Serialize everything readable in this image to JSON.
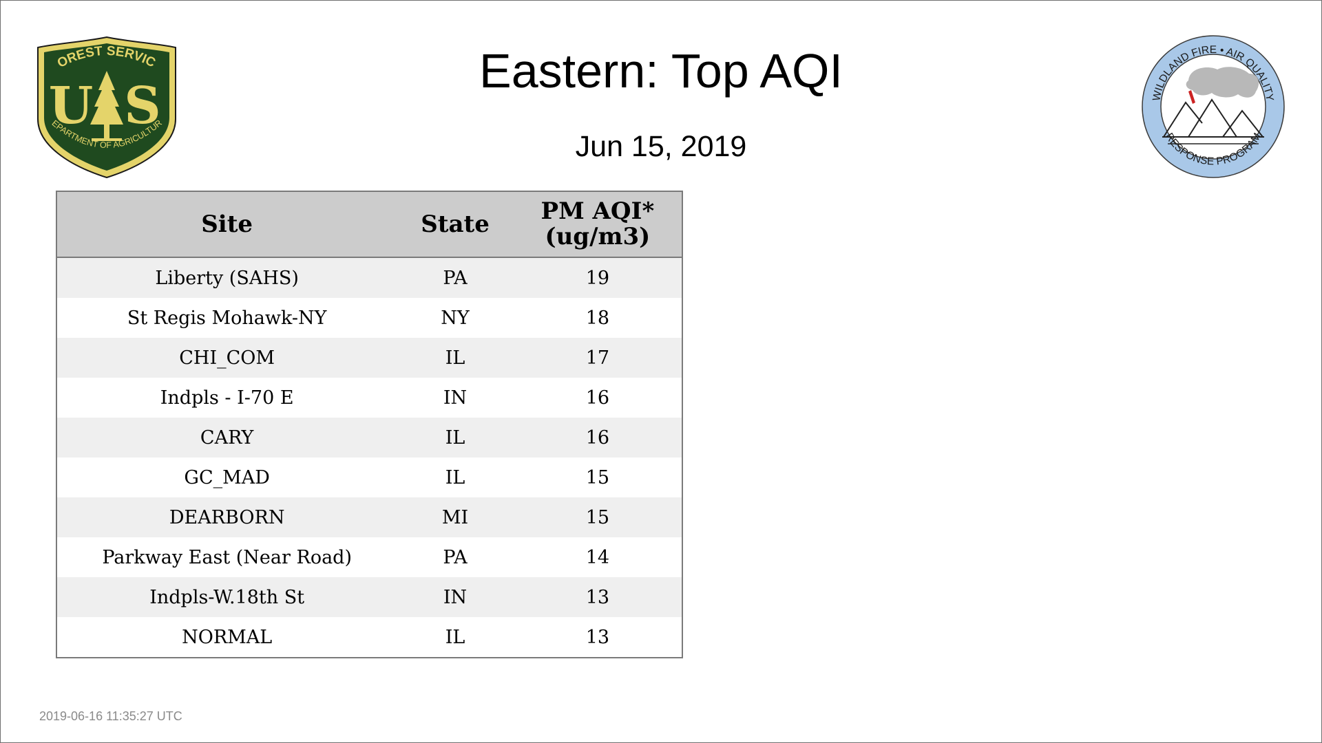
{
  "slide": {
    "title": "Eastern: Top AQI",
    "date": "Jun 15, 2019",
    "timestamp": "2019-06-16 11:35:27 UTC"
  },
  "logos": {
    "left": {
      "icon": "usfs-shield-icon",
      "text_top": "FOREST SERVICE",
      "letters": "U S",
      "text_bottom": "DEPARTMENT OF AGRICULTURE",
      "colors": {
        "green": "#1f4a1f",
        "gold": "#e4d46a"
      }
    },
    "right": {
      "icon": "wildland-fire-air-quality-seal-icon",
      "text_top": "WILDLAND FIRE • AIR QUALITY",
      "text_bottom": "RESPONSE PROGRAM",
      "colors": {
        "ring": "#a9c8e8",
        "smoke": "#b8b8b8",
        "flame": "#cc2222"
      }
    }
  },
  "table": {
    "headers": {
      "site": "Site",
      "state": "State",
      "aqi_line1": "PM AQI*",
      "aqi_line2": "(ug/m3)"
    },
    "rows": [
      {
        "site": "Liberty (SAHS)",
        "state": "PA",
        "aqi": "19"
      },
      {
        "site": "St Regis Mohawk-NY",
        "state": "NY",
        "aqi": "18"
      },
      {
        "site": "CHI_COM",
        "state": "IL",
        "aqi": "17"
      },
      {
        "site": "Indpls - I-70 E",
        "state": "IN",
        "aqi": "16"
      },
      {
        "site": "CARY",
        "state": "IL",
        "aqi": "16"
      },
      {
        "site": "GC_MAD",
        "state": "IL",
        "aqi": "15"
      },
      {
        "site": "DEARBORN",
        "state": "MI",
        "aqi": "15"
      },
      {
        "site": "Parkway East (Near Road)",
        "state": "PA",
        "aqi": "14"
      },
      {
        "site": "Indpls-W.18th St",
        "state": "IN",
        "aqi": "13"
      },
      {
        "site": "NORMAL",
        "state": "IL",
        "aqi": "13"
      }
    ],
    "colors": {
      "header_bg": "#cccccc",
      "stripe": "#efefef",
      "border": "#7a7a7a"
    }
  }
}
